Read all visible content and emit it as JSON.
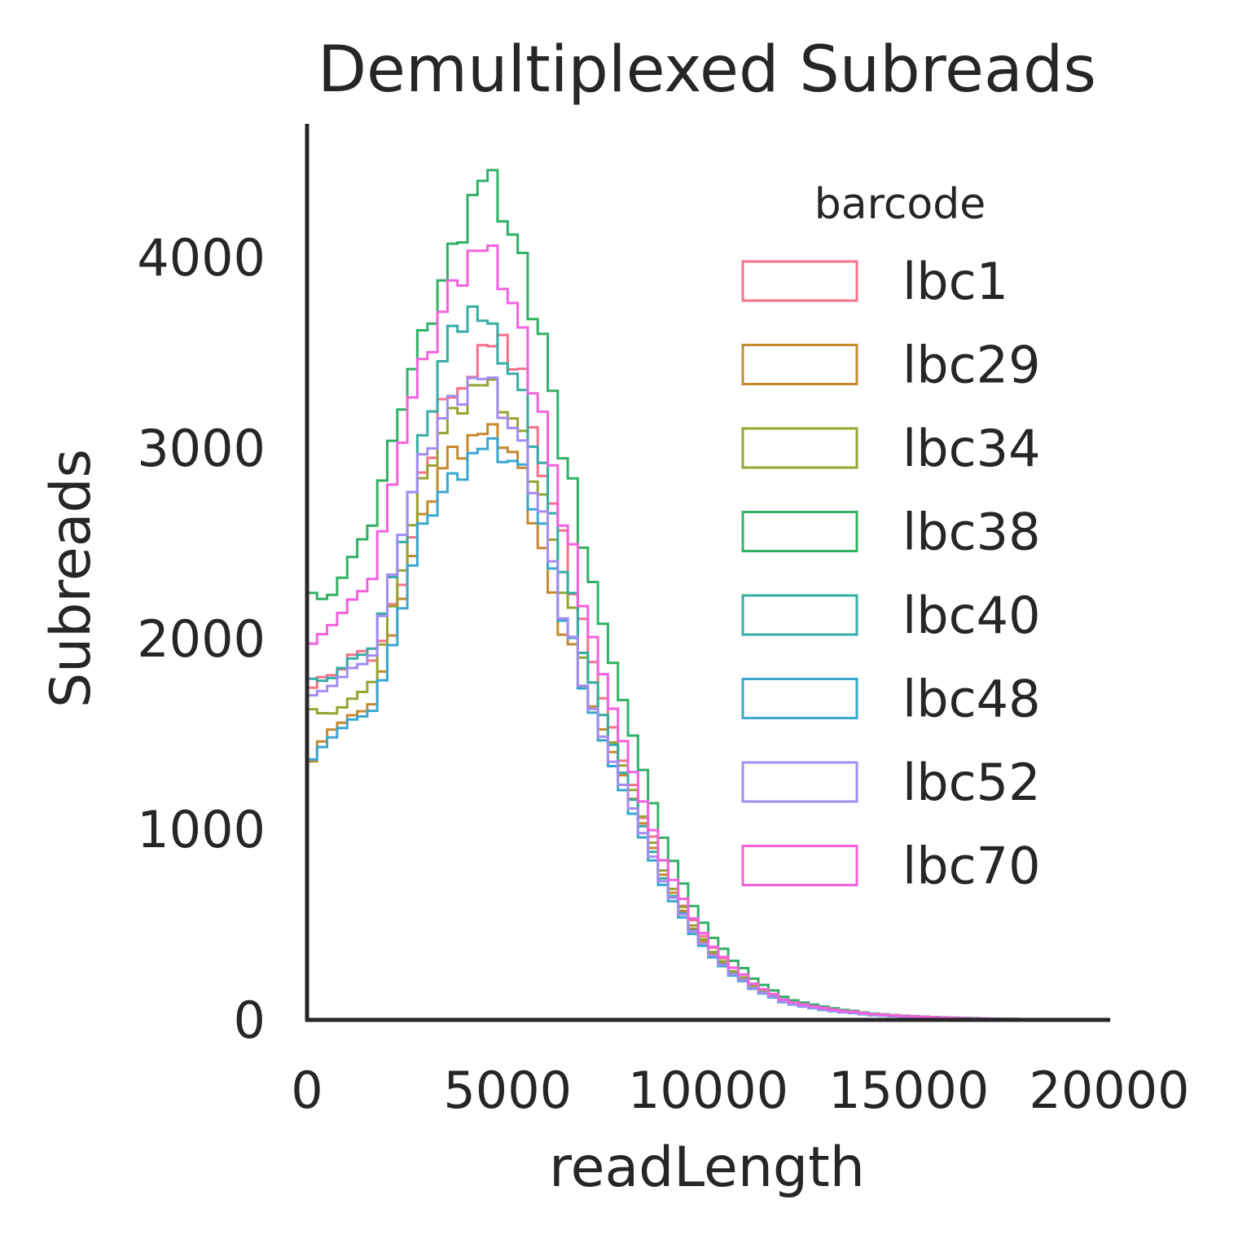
{
  "chart_data": {
    "type": "histogram-step",
    "title": "Demultiplexed Subreads",
    "xlabel": "readLength",
    "ylabel": "Subreads",
    "xlim": [
      0,
      20000
    ],
    "ylim": [
      0,
      4700
    ],
    "xticks": [
      {
        "value": 0,
        "label": "0"
      },
      {
        "value": 5000,
        "label": "5000"
      },
      {
        "value": 10000,
        "label": "10000"
      },
      {
        "value": 15000,
        "label": "15000"
      },
      {
        "value": 20000,
        "label": "20000"
      }
    ],
    "yticks": [
      {
        "value": 0,
        "label": "0"
      },
      {
        "value": 1000,
        "label": "1000"
      },
      {
        "value": 2000,
        "label": "2000"
      },
      {
        "value": 3000,
        "label": "3000"
      },
      {
        "value": 4000,
        "label": "4000"
      }
    ],
    "grid": false,
    "legend": {
      "title": "barcode",
      "placement": "top-right"
    },
    "series": [
      {
        "name": "lbc1",
        "color": "#f77189",
        "points": [
          [
            0,
            1700
          ],
          [
            500,
            1780
          ],
          [
            1000,
            1850
          ],
          [
            1500,
            1900
          ],
          [
            2000,
            2050
          ],
          [
            2500,
            2450
          ],
          [
            3000,
            2900
          ],
          [
            3500,
            3250
          ],
          [
            4000,
            3420
          ],
          [
            4500,
            3500
          ],
          [
            5000,
            3560
          ],
          [
            5500,
            3300
          ],
          [
            6000,
            2800
          ],
          [
            6500,
            2400
          ],
          [
            7000,
            1950
          ],
          [
            7500,
            1600
          ],
          [
            8000,
            1300
          ],
          [
            8500,
            1000
          ],
          [
            9000,
            750
          ],
          [
            9500,
            560
          ],
          [
            10000,
            400
          ],
          [
            10500,
            290
          ],
          [
            11000,
            200
          ],
          [
            11500,
            140
          ],
          [
            12000,
            95
          ],
          [
            13000,
            55
          ],
          [
            14000,
            30
          ],
          [
            15000,
            18
          ],
          [
            16000,
            10
          ],
          [
            17000,
            6
          ],
          [
            18000,
            4
          ],
          [
            19000,
            2
          ],
          [
            20000,
            1
          ]
        ]
      },
      {
        "name": "lbc29",
        "color": "#c7892f",
        "points": [
          [
            0,
            1270
          ],
          [
            500,
            1550
          ],
          [
            1000,
            1600
          ],
          [
            1500,
            1650
          ],
          [
            2000,
            1850
          ],
          [
            2500,
            2350
          ],
          [
            3000,
            2750
          ],
          [
            3500,
            2950
          ],
          [
            4000,
            3000
          ],
          [
            4500,
            3050
          ],
          [
            5000,
            3080
          ],
          [
            5500,
            2800
          ],
          [
            6000,
            2300
          ],
          [
            6500,
            2000
          ],
          [
            7000,
            1700
          ],
          [
            7500,
            1450
          ],
          [
            8000,
            1200
          ],
          [
            8500,
            950
          ],
          [
            9000,
            720
          ],
          [
            9500,
            520
          ],
          [
            10000,
            380
          ],
          [
            10500,
            270
          ],
          [
            11000,
            190
          ],
          [
            11500,
            130
          ],
          [
            12000,
            90
          ],
          [
            13000,
            50
          ],
          [
            14000,
            28
          ],
          [
            15000,
            16
          ],
          [
            16000,
            9
          ],
          [
            17000,
            5
          ],
          [
            18000,
            3
          ],
          [
            19000,
            2
          ],
          [
            20000,
            1
          ]
        ]
      },
      {
        "name": "lbc34",
        "color": "#97a431",
        "points": [
          [
            0,
            1600
          ],
          [
            500,
            1640
          ],
          [
            1000,
            1680
          ],
          [
            1500,
            1760
          ],
          [
            2000,
            2000
          ],
          [
            2500,
            2500
          ],
          [
            3000,
            2950
          ],
          [
            3500,
            3130
          ],
          [
            4000,
            3260
          ],
          [
            4500,
            3300
          ],
          [
            5000,
            3250
          ],
          [
            5500,
            3000
          ],
          [
            6000,
            2600
          ],
          [
            6500,
            2200
          ],
          [
            7000,
            1850
          ],
          [
            7500,
            1500
          ],
          [
            8000,
            1250
          ],
          [
            8500,
            980
          ],
          [
            9000,
            740
          ],
          [
            9500,
            540
          ],
          [
            10000,
            390
          ],
          [
            10500,
            280
          ],
          [
            11000,
            195
          ],
          [
            11500,
            135
          ],
          [
            12000,
            92
          ],
          [
            13000,
            52
          ],
          [
            14000,
            29
          ],
          [
            15000,
            17
          ],
          [
            16000,
            9
          ],
          [
            17000,
            5
          ],
          [
            18000,
            3
          ],
          [
            19000,
            2
          ],
          [
            20000,
            1
          ]
        ]
      },
      {
        "name": "lbc38",
        "color": "#32b166",
        "points": [
          [
            0,
            2200
          ],
          [
            500,
            2250
          ],
          [
            1000,
            2400
          ],
          [
            1500,
            2600
          ],
          [
            2000,
            2850
          ],
          [
            2500,
            3350
          ],
          [
            3000,
            3700
          ],
          [
            3500,
            3950
          ],
          [
            4000,
            4200
          ],
          [
            4500,
            4400
          ],
          [
            5000,
            4250
          ],
          [
            5500,
            3900
          ],
          [
            6000,
            3400
          ],
          [
            6500,
            2900
          ],
          [
            7000,
            2400
          ],
          [
            7500,
            1950
          ],
          [
            8000,
            1550
          ],
          [
            8500,
            1200
          ],
          [
            9000,
            900
          ],
          [
            9500,
            650
          ],
          [
            10000,
            470
          ],
          [
            10500,
            340
          ],
          [
            11000,
            240
          ],
          [
            11500,
            165
          ],
          [
            12000,
            110
          ],
          [
            13000,
            65
          ],
          [
            14000,
            35
          ],
          [
            15000,
            20
          ],
          [
            16000,
            12
          ],
          [
            17000,
            7
          ],
          [
            18000,
            4
          ],
          [
            19000,
            2
          ],
          [
            20000,
            1
          ]
        ]
      },
      {
        "name": "lbc40",
        "color": "#36ada4",
        "points": [
          [
            0,
            1750
          ],
          [
            500,
            1820
          ],
          [
            1000,
            1900
          ],
          [
            1500,
            1950
          ],
          [
            2000,
            2150
          ],
          [
            2500,
            2650
          ],
          [
            3000,
            3200
          ],
          [
            3500,
            3550
          ],
          [
            4000,
            3700
          ],
          [
            4500,
            3600
          ],
          [
            5000,
            3500
          ],
          [
            5500,
            3200
          ],
          [
            6000,
            2750
          ],
          [
            6500,
            2300
          ],
          [
            7000,
            1850
          ],
          [
            7500,
            1500
          ],
          [
            8000,
            1200
          ],
          [
            8500,
            930
          ],
          [
            9000,
            700
          ],
          [
            9500,
            510
          ],
          [
            10000,
            370
          ],
          [
            10500,
            265
          ],
          [
            11000,
            185
          ],
          [
            11500,
            128
          ],
          [
            12000,
            88
          ],
          [
            13000,
            50
          ],
          [
            14000,
            28
          ],
          [
            15000,
            16
          ],
          [
            16000,
            9
          ],
          [
            17000,
            5
          ],
          [
            18000,
            3
          ],
          [
            19000,
            2
          ],
          [
            20000,
            1
          ]
        ]
      },
      {
        "name": "lbc48",
        "color": "#39a7d0",
        "points": [
          [
            0,
            1300
          ],
          [
            500,
            1500
          ],
          [
            1000,
            1580
          ],
          [
            1500,
            1620
          ],
          [
            2000,
            1800
          ],
          [
            2500,
            2300
          ],
          [
            3000,
            2700
          ],
          [
            3500,
            2800
          ],
          [
            4000,
            2900
          ],
          [
            4500,
            2980
          ],
          [
            5000,
            3000
          ],
          [
            5500,
            2850
          ],
          [
            6000,
            2450
          ],
          [
            6500,
            2050
          ],
          [
            7000,
            1680
          ],
          [
            7500,
            1380
          ],
          [
            8000,
            1120
          ],
          [
            8500,
            880
          ],
          [
            9000,
            670
          ],
          [
            9500,
            490
          ],
          [
            10000,
            360
          ],
          [
            10500,
            255
          ],
          [
            11000,
            180
          ],
          [
            11500,
            125
          ],
          [
            12000,
            86
          ],
          [
            13000,
            48
          ],
          [
            14000,
            27
          ],
          [
            15000,
            15
          ],
          [
            16000,
            9
          ],
          [
            17000,
            5
          ],
          [
            18000,
            3
          ],
          [
            19000,
            2
          ],
          [
            20000,
            1
          ]
        ]
      },
      {
        "name": "lbc52",
        "color": "#a48cf4",
        "points": [
          [
            0,
            1650
          ],
          [
            500,
            1780
          ],
          [
            1000,
            1850
          ],
          [
            1500,
            1900
          ],
          [
            2000,
            2150
          ],
          [
            2500,
            2700
          ],
          [
            3000,
            3050
          ],
          [
            3500,
            3200
          ],
          [
            4000,
            3300
          ],
          [
            4500,
            3330
          ],
          [
            5000,
            3200
          ],
          [
            5500,
            2950
          ],
          [
            6000,
            2500
          ],
          [
            6500,
            2050
          ],
          [
            7000,
            1700
          ],
          [
            7500,
            1400
          ],
          [
            8000,
            1150
          ],
          [
            8500,
            900
          ],
          [
            9000,
            690
          ],
          [
            9500,
            505
          ],
          [
            10000,
            370
          ],
          [
            10500,
            262
          ],
          [
            11000,
            185
          ],
          [
            11500,
            128
          ],
          [
            12000,
            88
          ],
          [
            13000,
            50
          ],
          [
            14000,
            28
          ],
          [
            15000,
            16
          ],
          [
            16000,
            9
          ],
          [
            17000,
            5
          ],
          [
            18000,
            3
          ],
          [
            19000,
            2
          ],
          [
            20000,
            1
          ]
        ]
      },
      {
        "name": "lbc70",
        "color": "#f461dd",
        "points": [
          [
            0,
            1900
          ],
          [
            500,
            2100
          ],
          [
            1000,
            2200
          ],
          [
            1500,
            2300
          ],
          [
            2000,
            2600
          ],
          [
            2500,
            3200
          ],
          [
            3000,
            3550
          ],
          [
            3500,
            3780
          ],
          [
            4000,
            3950
          ],
          [
            4500,
            4000
          ],
          [
            5000,
            3900
          ],
          [
            5500,
            3500
          ],
          [
            6000,
            3000
          ],
          [
            6500,
            2550
          ],
          [
            7000,
            2100
          ],
          [
            7500,
            1700
          ],
          [
            8000,
            1350
          ],
          [
            8500,
            1050
          ],
          [
            9000,
            790
          ],
          [
            9500,
            580
          ],
          [
            10000,
            420
          ],
          [
            10500,
            300
          ],
          [
            11000,
            210
          ],
          [
            11500,
            145
          ],
          [
            12000,
            98
          ],
          [
            13000,
            58
          ],
          [
            14000,
            32
          ],
          [
            15000,
            19
          ],
          [
            16000,
            11
          ],
          [
            17000,
            6
          ],
          [
            18000,
            4
          ],
          [
            19000,
            2
          ],
          [
            20000,
            1
          ]
        ]
      }
    ]
  }
}
